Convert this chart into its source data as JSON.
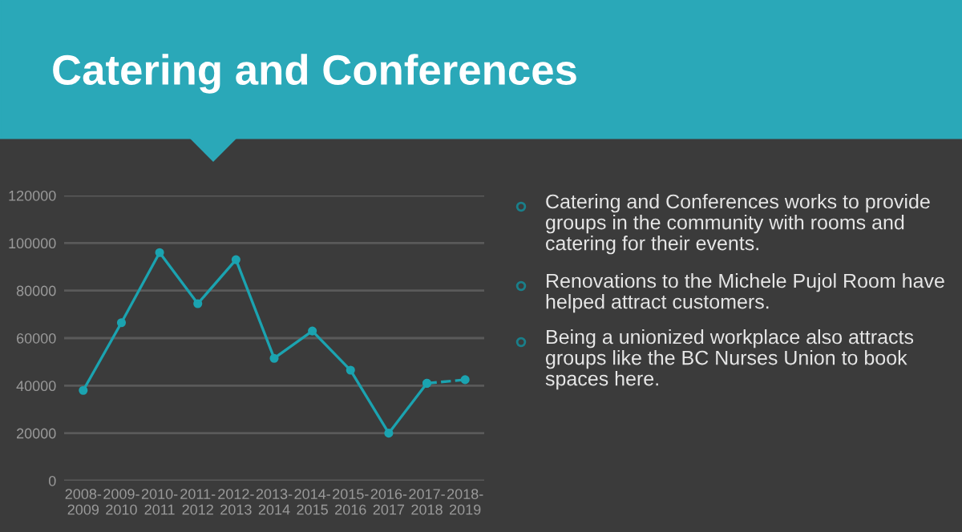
{
  "chart_data": {
    "type": "line",
    "title": "Catering and Conferences",
    "categories": [
      "2008-2009",
      "2009-2010",
      "2010-2011",
      "2011-2012",
      "2012-2013",
      "2013-2014",
      "2014-2015",
      "2015-2016",
      "2016-2017",
      "2017-2018",
      "2018-2019"
    ],
    "series": [
      {
        "color": "#1ba3b0",
        "line_style": "solid",
        "values": [
          38000,
          66500,
          96000,
          74500,
          93000,
          51500,
          63000,
          46500,
          20000,
          41000,
          null
        ]
      },
      {
        "color": "#1ba3b0",
        "line_style": "dashed",
        "values": [
          null,
          null,
          null,
          null,
          null,
          null,
          null,
          null,
          null,
          41000,
          42500
        ]
      }
    ],
    "ylim": [
      0,
      120000
    ],
    "yticks": [
      0,
      20000,
      40000,
      60000,
      80000,
      100000,
      120000
    ],
    "grid": "y",
    "marker": "circle",
    "annotations": [
      "Catering and Conferences works to provide groups in the community with rooms and catering for their events.",
      "Renovations to the Michele Pujol Room have helped attract customers.",
      "Being a unionized workplace also attracts groups like the BC Nurses Union to book spaces here."
    ]
  }
}
